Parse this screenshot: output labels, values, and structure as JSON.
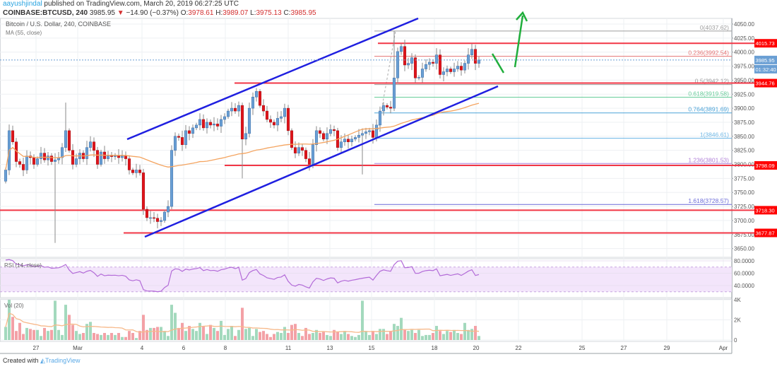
{
  "header": {
    "user": "aayushjindal",
    "published": "published on TradingView.com, March 20, 2019 06:27:25 UTC",
    "symbol": "COINBASE:BTCUSD, 240",
    "last": "3985.95",
    "change": "−14.90 (−0.37%)",
    "o_label": "O:",
    "o": "3978.61",
    "h_label": "H:",
    "h": "3989.07",
    "l_label": "L:",
    "l": "3975.13",
    "c_label": "C:",
    "c": "3985.95",
    "down_icon": "triangle-down-icon"
  },
  "footer": {
    "created_with": "Created with",
    "brand": "TradingView"
  },
  "colors": {
    "up": "#6a9fd4",
    "down": "#e0141b",
    "vol_up": "#a3d9bd",
    "vol_down": "#f3a1a6",
    "ma": "#f4a460",
    "rsi": "#b36bd8",
    "channel": "#1f1fe0",
    "support": "#f23645",
    "arrow": "#1fae3b"
  },
  "chart_data": [
    {
      "type": "candlestick",
      "title": "Bitcoin / U.S. Dollar, 240, COINBASE",
      "indicator": "MA (55, close)",
      "yaxis_ticks": [
        "3650.00",
        "3675.00",
        "3700.00",
        "3725.00",
        "3750.00",
        "3775.00",
        "3800.00",
        "3825.00",
        "3850.00",
        "3875.00",
        "3900.00",
        "3925.00",
        "3950.00",
        "3975.00",
        "4000.00",
        "4025.00",
        "4050.00"
      ],
      "ylim": [
        3650,
        4050
      ],
      "xaxis_ticks": [
        "27",
        "Mar",
        "4",
        "6",
        "8",
        "11",
        "13",
        "15",
        "18",
        "20",
        "22",
        "25",
        "27",
        "29",
        "Apr"
      ],
      "first_open": 3770,
      "closes": [
        3790,
        3860,
        3840,
        3805,
        3800,
        3790,
        3815,
        3812,
        3800,
        3810,
        3820,
        3808,
        3815,
        3805,
        3808,
        3812,
        3830,
        3860,
        3825,
        3800,
        3810,
        3820,
        3810,
        3830,
        3840,
        3825,
        3800,
        3822,
        3810,
        3815,
        3814,
        3815,
        3812,
        3815,
        3810,
        3790,
        3785,
        3790,
        3785,
        3720,
        3705,
        3705,
        3704,
        3698,
        3700,
        3715,
        3725,
        3825,
        3850,
        3848,
        3835,
        3860,
        3855,
        3865,
        3870,
        3880,
        3865,
        3875,
        3870,
        3872,
        3868,
        3880,
        3885,
        3895,
        3900,
        3895,
        3905,
        3845,
        3855,
        3900,
        3920,
        3930,
        3905,
        3895,
        3880,
        3875,
        3870,
        3882,
        3885,
        3900,
        3860,
        3830,
        3820,
        3830,
        3825,
        3810,
        3800,
        3835,
        3860,
        3855,
        3845,
        3855,
        3862,
        3860,
        3830,
        3840,
        3845,
        3840,
        3845,
        3848,
        3852,
        3855,
        3858,
        3860,
        3848,
        3870,
        3895,
        3905,
        3902,
        3900,
        3954,
        4001,
        4010,
        3977,
        3980,
        3990,
        3954,
        3955,
        3970,
        3978,
        3982,
        3980,
        3995,
        3960,
        3965,
        3970,
        3965,
        3970,
        3975,
        3968,
        3980,
        3995,
        4005,
        3980,
        3985.95
      ],
      "notable_wicks": [
        {
          "index": 14,
          "low": 3660
        },
        {
          "index": 17,
          "high": 3910
        },
        {
          "index": 67,
          "low": 3775
        },
        {
          "index": 101,
          "low": 3782
        },
        {
          "index": 110,
          "high": 4037.62
        }
      ],
      "horizontal_levels": [
        {
          "price": 4015.73,
          "label": "4015.73"
        },
        {
          "price": 3944.76,
          "label": "3944.76"
        },
        {
          "price": 3798.09,
          "label": "3798.09"
        },
        {
          "price": 3718.3,
          "label": "3718.30"
        },
        {
          "price": 3677.87,
          "label": "3677.87"
        }
      ],
      "last_price_label": "3985.95",
      "countdown": "01:32:40",
      "fibonacci": [
        {
          "ratio": "0",
          "price": 4037.62,
          "label": "0(4037.62)",
          "color": "#9e9e9e"
        },
        {
          "ratio": "0.236",
          "price": 3992.54,
          "label": "0.236(3992.54)",
          "color": "#e57373"
        },
        {
          "ratio": "0.5",
          "price": 3942.12,
          "label": "0.5(3942.12)",
          "color": "#9e9e9e"
        },
        {
          "ratio": "0.618",
          "price": 3919.58,
          "label": "0.618(3919.58)",
          "color": "#66cc99"
        },
        {
          "ratio": "0.764",
          "price": 3891.69,
          "label": "0.764(3891.69)",
          "color": "#4aa3d8"
        },
        {
          "ratio": "1",
          "price": 3846.61,
          "label": "1(3846.61)",
          "color": "#6fb8e6"
        },
        {
          "ratio": "1.236",
          "price": 3801.53,
          "label": "1.236(3801.53)",
          "color": "#b07fd8"
        },
        {
          "ratio": "1.618",
          "price": 3728.57,
          "label": "1.618(3728.57)",
          "color": "#6a6ad8"
        }
      ]
    },
    {
      "type": "line",
      "title": "RSI (14, close)",
      "ylim": [
        20,
        85
      ],
      "yaxis_ticks": [
        "40.0000",
        "60.0000",
        "80.0000"
      ],
      "bands": [
        30,
        70
      ]
    },
    {
      "type": "bar",
      "title": "Vol (20)",
      "yaxis_ticks": [
        "0",
        "2K",
        "4K"
      ],
      "ylim": [
        0,
        4000
      ],
      "volume_thousands": [
        1.3,
        4.0,
        2.3,
        0.9,
        1.7,
        0.6,
        1.2,
        1.1,
        1.0,
        1.0,
        0.4,
        1.2,
        0.9,
        1.0,
        3.9,
        1.0,
        0.5,
        3.5,
        2.5,
        1.5,
        0.9,
        0.6,
        0.7,
        1.6,
        1.8,
        0.7,
        0.6,
        0.5,
        0.7,
        0.5,
        0.7,
        0.5,
        0.7,
        0.3,
        0.3,
        0.9,
        0.7,
        0.2,
        0.9,
        2.5,
        1.0,
        1.2,
        1.2,
        1.3,
        1.3,
        0.9,
        0.4,
        3.5,
        2.7,
        1.2,
        1.7,
        0.9,
        1.4,
        1.1,
        0.9,
        1.7,
        1.4,
        0.6,
        1.5,
        1.2,
        0.9,
        1.9,
        0.5,
        1.1,
        1.4,
        0.4,
        1.0,
        3.2,
        1.1,
        1.2,
        0.4,
        1.1,
        0.8,
        0.9,
        0.6,
        0.3,
        0.6,
        0.8,
        0.7,
        1.3,
        0.7,
        1.5,
        1.6,
        0.7,
        0.4,
        1.2,
        0.6,
        0.7,
        1.0,
        0.7,
        0.8,
        0.5,
        0.4,
        1.0,
        0.8,
        0.6,
        0.9,
        0.6,
        0.4,
        0.3,
        0.5,
        3.9,
        0.9,
        0.5,
        0.9,
        0.6,
        1.1,
        1.1,
        0.6,
        0.9,
        1.6,
        1.4,
        2.2,
        1.0,
        0.9,
        1.0,
        0.7,
        1.0,
        0.4,
        0.5,
        0.5,
        0.7,
        1.4,
        0.9,
        0.6,
        0.9,
        0.8,
        1.0,
        0.7,
        0.6,
        1.7,
        1.0,
        1.1,
        1.4,
        0.4
      ]
    }
  ]
}
